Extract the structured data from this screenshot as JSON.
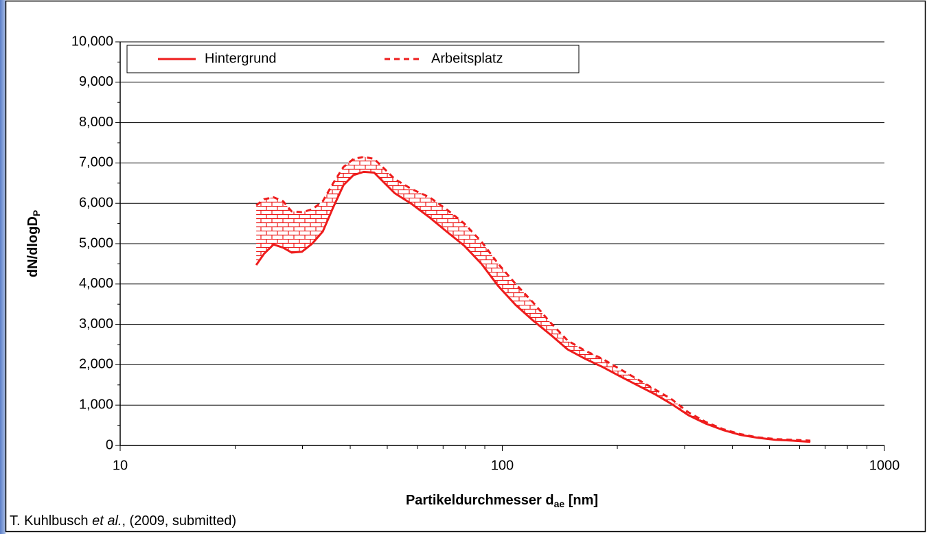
{
  "chart_data": {
    "type": "line",
    "xlabel": {
      "main": "Partikeldurchmesser d",
      "sub": "ae",
      "unit": " [nm]"
    },
    "ylabel": {
      "main": "dN/dlogD",
      "sub": "P"
    },
    "caption": {
      "author": "T. Kuhlbusch ",
      "etal": "et al.",
      "rest": ", (2009, submitted)"
    },
    "x": [
      22.7,
      23.8,
      25.2,
      26.7,
      28.1,
      29.9,
      31.8,
      33.9,
      36.1,
      38.4,
      40.8,
      43.4,
      46.2,
      49.2,
      52.3,
      58,
      64.5,
      71.5,
      79.5,
      88.2,
      97.6,
      108.4,
      120.2,
      133.5,
      148.2,
      164.5,
      182.5,
      202.6,
      224.9,
      249.7,
      277,
      307,
      341,
      379,
      420,
      467,
      518,
      575,
      640
    ],
    "series": [
      {
        "name": "Hintergrund",
        "color": "#ee1c1c",
        "dash": false,
        "values": [
          4470,
          4750,
          4980,
          4900,
          4780,
          4800,
          5000,
          5300,
          5900,
          6450,
          6700,
          6780,
          6760,
          6500,
          6250,
          5980,
          5650,
          5300,
          4950,
          4500,
          3950,
          3480,
          3100,
          2750,
          2380,
          2150,
          1950,
          1720,
          1500,
          1280,
          1030,
          750,
          540,
          380,
          260,
          190,
          140,
          120,
          90
        ]
      },
      {
        "name": "Arbeitsplatz",
        "color": "#ee1c1c",
        "dash": true,
        "values": [
          5950,
          6100,
          6150,
          6050,
          5800,
          5780,
          5850,
          6050,
          6500,
          6900,
          7100,
          7150,
          7100,
          6850,
          6600,
          6350,
          6150,
          5850,
          5500,
          5050,
          4500,
          4000,
          3550,
          3050,
          2600,
          2350,
          2150,
          1900,
          1650,
          1400,
          1150,
          820,
          580,
          400,
          280,
          200,
          160,
          140,
          120
        ]
      }
    ],
    "xlog": true,
    "xlim": [
      10,
      1000
    ],
    "xticks": [
      10,
      100,
      1000
    ],
    "ylim": [
      0,
      10000
    ],
    "yticks": [
      0,
      {
        "value": 1000,
        "label": "1,000"
      },
      {
        "value": 2000,
        "label": "2,000"
      },
      {
        "value": 3000,
        "label": "3,000"
      },
      {
        "value": 4000,
        "label": "4,000"
      },
      {
        "value": 5000,
        "label": "5,000"
      },
      {
        "value": 6000,
        "label": "6,000"
      },
      {
        "value": 7000,
        "label": "7,000"
      },
      {
        "value": 8000,
        "label": "8,000"
      },
      {
        "value": 9000,
        "label": "9,000"
      },
      {
        "value": 10000,
        "label": "10,000"
      }
    ],
    "grid": true,
    "legend": "top-left"
  }
}
